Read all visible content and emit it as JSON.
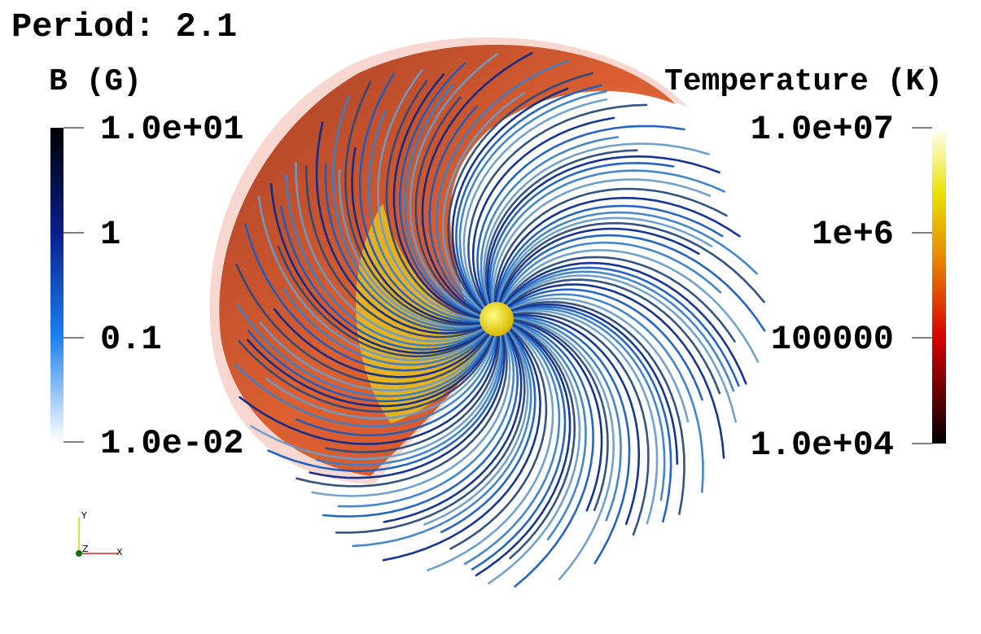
{
  "title": "Period: 2.1",
  "colorbars": [
    {
      "title": "B (G)",
      "ticks": [
        "1.0e+01",
        "1",
        "0.1",
        "1.0e-02"
      ]
    },
    {
      "title": "Temperature (K)",
      "ticks": [
        "1.0e+07",
        "1e+6",
        "100000",
        "1.0e+04"
      ]
    }
  ],
  "axes_triad": {
    "y": "Y",
    "z": "Z",
    "x": "X"
  }
}
